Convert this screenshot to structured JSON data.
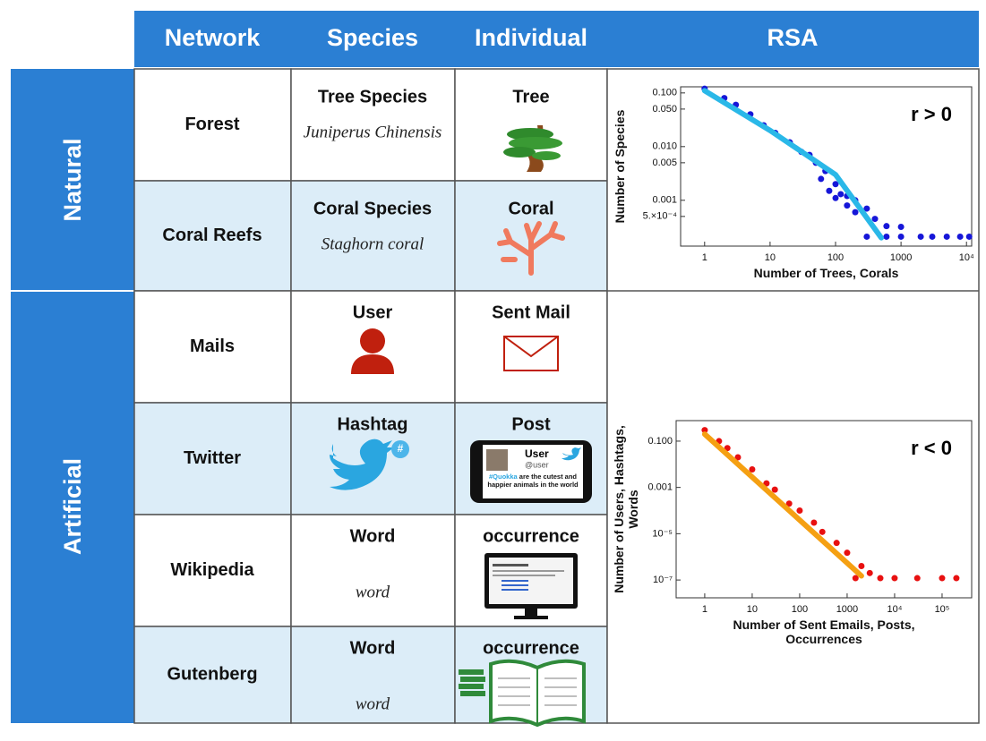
{
  "table": {
    "header": [
      "Network",
      "Species",
      "Individual",
      "RSA"
    ],
    "groups": [
      "Natural",
      "Artificial"
    ],
    "rows": [
      {
        "network": "Forest",
        "species": "Tree Species",
        "species_example": "Juniperus Chinensis",
        "individual": "Tree"
      },
      {
        "network": "Coral Reefs",
        "species": "Coral Species",
        "species_example": "Staghorn coral",
        "individual": "Coral"
      },
      {
        "network": "Mails",
        "species": "User",
        "individual": "Sent Mail"
      },
      {
        "network": "Twitter",
        "species": "Hashtag",
        "species_badge": "#",
        "individual": "Post",
        "post": {
          "user": "User",
          "handle": "@user",
          "hashtag": "#Quokka",
          "text": "are the cutest and happier animals in the world"
        }
      },
      {
        "network": "Wikipedia",
        "species": "Word",
        "species_example": "word",
        "individual": "occurrence"
      },
      {
        "network": "Gutenberg",
        "species": "Word",
        "species_example": "word",
        "individual": "occurrence"
      }
    ]
  },
  "chart_data": [
    {
      "type": "scatter",
      "annotation": "r > 0",
      "xlabel": "Number of Trees, Corals",
      "ylabel": "Number of Species",
      "xscale": "log",
      "yscale": "log",
      "grid": false,
      "xlim": [
        0.43,
        12000
      ],
      "ylim": [
        0.00014,
        0.13
      ],
      "xticks": [
        1,
        10,
        100,
        1000,
        {
          "value": 10000,
          "label": "10⁴"
        }
      ],
      "yticks": [
        {
          "value": 0.1,
          "label": "0.100"
        },
        {
          "value": 0.05,
          "label": "0.050"
        },
        {
          "value": 0.01,
          "label": "0.010"
        },
        {
          "value": 0.005,
          "label": "0.005"
        },
        {
          "value": 0.001,
          "label": "0.001"
        },
        {
          "value": 0.0005,
          "label": "5.×10⁻⁴"
        }
      ],
      "series": [
        {
          "mode": "markers",
          "color": "#1616d8",
          "x": [
            1,
            2,
            3,
            5,
            8,
            12,
            20,
            30,
            40,
            50,
            70,
            100,
            80,
            120,
            150,
            200,
            300,
            150,
            100,
            60,
            200,
            400,
            600,
            1000,
            300,
            600,
            1000,
            2000,
            3000,
            5000,
            8000,
            11000
          ],
          "values": [
            0.12,
            0.08,
            0.06,
            0.04,
            0.025,
            0.018,
            0.012,
            0.008,
            0.007,
            0.005,
            0.0035,
            0.002,
            0.0015,
            0.0013,
            0.0012,
            0.001,
            0.0007,
            0.0008,
            0.0011,
            0.0025,
            0.0006,
            0.00045,
            0.00033,
            0.00032,
            0.00021,
            0.00021,
            0.00021,
            0.00021,
            0.00021,
            0.00021,
            0.00021,
            0.00021
          ]
        },
        {
          "mode": "lines",
          "color": "#2ab8e8",
          "x": [
            1,
            10,
            100,
            500
          ],
          "values": [
            0.11,
            0.02,
            0.003,
            0.0002
          ]
        }
      ]
    },
    {
      "type": "scatter",
      "annotation": "r < 0",
      "xlabel": "Number of Sent Emails, Posts, Occurrences",
      "ylabel": "Number of Users, Hashtags, Words",
      "xscale": "log",
      "yscale": "log",
      "grid": false,
      "xlim": [
        0.25,
        420000
      ],
      "ylim": [
        1.7e-08,
        0.77
      ],
      "xticks": [
        1,
        10,
        100,
        1000,
        {
          "value": 10000,
          "label": "10⁴"
        },
        {
          "value": 100000,
          "label": "10⁵"
        }
      ],
      "yticks": [
        {
          "value": 0.1,
          "label": "0.100"
        },
        0.001,
        {
          "value": 1e-05,
          "label": "10⁻⁵"
        },
        {
          "value": 1e-07,
          "label": "10⁻⁷"
        }
      ],
      "series": [
        {
          "mode": "markers",
          "color": "#e81010",
          "x": [
            1,
            2,
            3,
            5,
            10,
            20,
            30,
            60,
            100,
            200,
            300,
            600,
            1000,
            2000,
            3000,
            1500,
            5000,
            10000,
            30000,
            100000,
            200000
          ],
          "values": [
            0.3,
            0.1,
            0.05,
            0.02,
            0.006,
            0.0015,
            0.0008,
            0.0002,
            0.0001,
            3e-05,
            1.2e-05,
            4e-06,
            1.5e-06,
            4e-07,
            2e-07,
            1.2e-07,
            1.2e-07,
            1.2e-07,
            1.2e-07,
            1.2e-07,
            1.2e-07
          ]
        },
        {
          "mode": "lines",
          "color": "#f5a012",
          "x": [
            1,
            2000
          ],
          "values": [
            0.2,
            1.5e-07
          ]
        }
      ]
    }
  ]
}
